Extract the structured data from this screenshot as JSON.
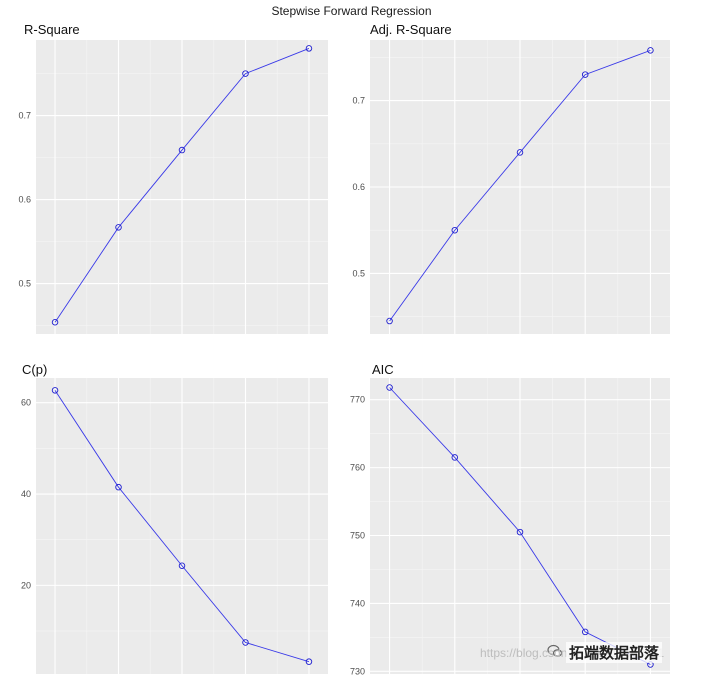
{
  "figure": {
    "title": "Stepwise Forward Regression",
    "watermark": "https://blog.csdn.net/qq_19600291",
    "brand": "拓端数据部落",
    "point_color": "#2020d0",
    "line_color": "#3a3ae8",
    "panel_background": "#ebebeb"
  },
  "chart_data": [
    {
      "type": "line",
      "title": "R-Square",
      "x": [
        1,
        2,
        3,
        4,
        5
      ],
      "y": [
        0.454,
        0.567,
        0.659,
        0.75,
        0.78
      ],
      "xlim": [
        0.7,
        5.3
      ],
      "ylim": [
        0.44,
        0.79
      ],
      "yticks": [
        0.5,
        0.6,
        0.7
      ],
      "ytick_labels": [
        "0.5",
        "0.6",
        "0.7"
      ],
      "grid": true,
      "markers": "open-circle"
    },
    {
      "type": "line",
      "title": "Adj. R-Square",
      "x": [
        1,
        2,
        3,
        4,
        5
      ],
      "y": [
        0.445,
        0.55,
        0.64,
        0.73,
        0.758
      ],
      "xlim": [
        0.7,
        5.3
      ],
      "ylim": [
        0.43,
        0.77
      ],
      "yticks": [
        0.5,
        0.6,
        0.7
      ],
      "ytick_labels": [
        "0.5",
        "0.6",
        "0.7"
      ],
      "grid": true,
      "markers": "open-circle"
    },
    {
      "type": "line",
      "title": "C(p)",
      "x": [
        1,
        2,
        3,
        4,
        5
      ],
      "y": [
        62.7,
        41.5,
        24.3,
        7.5,
        3.3
      ],
      "xlim": [
        0.7,
        5.3
      ],
      "ylim": [
        0.6,
        65.4
      ],
      "yticks": [
        20,
        40,
        60
      ],
      "ytick_labels": [
        "20",
        "40",
        "60"
      ],
      "grid": true,
      "markers": "open-circle"
    },
    {
      "type": "line",
      "title": "AIC",
      "x": [
        1,
        2,
        3,
        4,
        5
      ],
      "y": [
        771.8,
        761.5,
        750.5,
        735.8,
        731.0
      ],
      "xlim": [
        0.7,
        5.3
      ],
      "ylim": [
        729.6,
        773.2
      ],
      "yticks": [
        730,
        740,
        750,
        760,
        770
      ],
      "ytick_labels": [
        "730",
        "740",
        "750",
        "760",
        "770"
      ],
      "grid": true,
      "markers": "open-circle"
    }
  ]
}
